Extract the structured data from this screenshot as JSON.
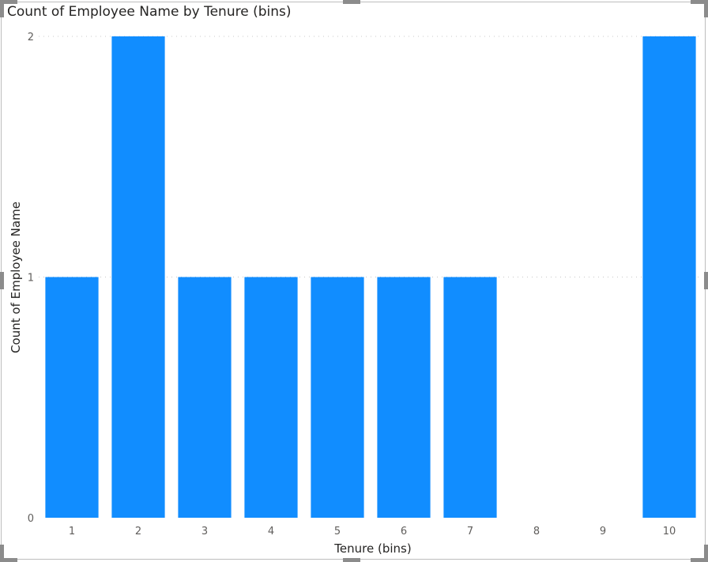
{
  "chart_data": {
    "type": "bar",
    "title": "Count of Employee Name by Tenure (bins)",
    "xlabel": "Tenure (bins)",
    "ylabel": "Count of Employee Name",
    "categories": [
      "1",
      "2",
      "3",
      "4",
      "5",
      "6",
      "7",
      "8",
      "9",
      "10"
    ],
    "values": [
      1,
      2,
      1,
      1,
      1,
      1,
      1,
      0,
      0,
      2
    ],
    "ylim": [
      0,
      2
    ],
    "yticks": [
      "0",
      "1",
      "2"
    ],
    "grid": true,
    "bar_color": "#118DFF",
    "grid_color": "#c8c8c8"
  }
}
